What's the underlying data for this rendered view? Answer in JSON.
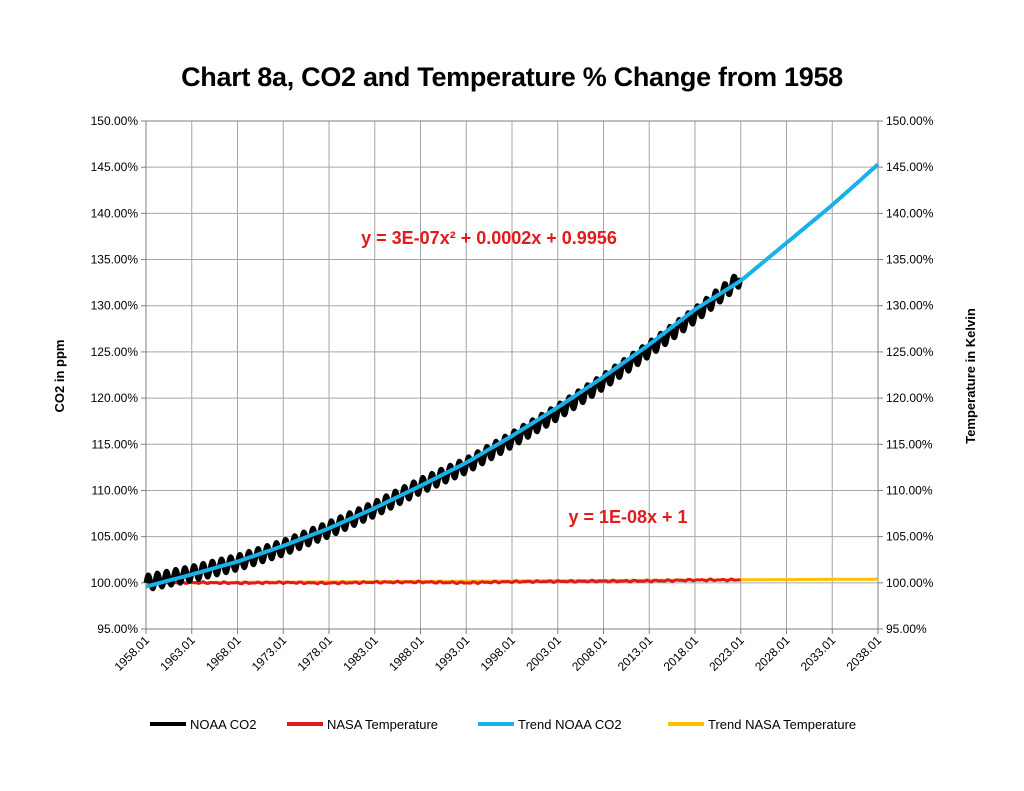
{
  "chart_data": {
    "type": "line",
    "title": "Chart 8a, CO2 and Temperature % Change from 1958",
    "ylabel": "CO2 in ppm",
    "y2label": "Temperature in Kelvin",
    "x_ticks": [
      "1958.01",
      "1963.01",
      "1968.01",
      "1973.01",
      "1978.01",
      "1983.01",
      "1988.01",
      "1993.01",
      "1998.01",
      "2003.01",
      "2008.01",
      "2013.01",
      "2018.01",
      "2023.01",
      "2028.01",
      "2033.01",
      "2038.01"
    ],
    "xlim": [
      1958.01,
      2038.01
    ],
    "y_ticks": [
      "95.00%",
      "100.00%",
      "105.00%",
      "110.00%",
      "115.00%",
      "120.00%",
      "125.00%",
      "130.00%",
      "135.00%",
      "140.00%",
      "145.00%",
      "150.00%"
    ],
    "ylim": [
      0.95,
      1.5
    ],
    "y2_ticks": [
      "95.00%",
      "100.00%",
      "105.00%",
      "110.00%",
      "115.00%",
      "120.00%",
      "125.00%",
      "130.00%",
      "135.00%",
      "140.00%",
      "145.00%",
      "150.00%"
    ],
    "grid": true,
    "legend_position": "bottom",
    "series": [
      {
        "name": "NOAA CO2",
        "color": "#000000",
        "x": [
          1958.01,
          1963.01,
          1968.01,
          1973.01,
          1978.01,
          1983.01,
          1988.01,
          1993.01,
          1998.01,
          2003.01,
          2008.01,
          2013.01,
          2018.01,
          2023.01
        ],
        "y": [
          1.0,
          1.01,
          1.022,
          1.038,
          1.058,
          1.08,
          1.105,
          1.127,
          1.155,
          1.185,
          1.218,
          1.253,
          1.29,
          1.33
        ],
        "seasonal_amplitude": 0.008
      },
      {
        "name": "NASA Temperature",
        "color": "#e31a1c",
        "x": [
          1958.01,
          1963.01,
          1968.01,
          1973.01,
          1978.01,
          1983.01,
          1988.01,
          1993.01,
          1998.01,
          2003.01,
          2008.01,
          2013.01,
          2018.01,
          2023.01
        ],
        "y": [
          1.0005,
          1.0002,
          0.9998,
          1.0003,
          0.9997,
          1.0006,
          1.0008,
          1.0,
          1.0012,
          1.0015,
          1.0018,
          1.002,
          1.003,
          1.0032
        ]
      },
      {
        "name": "Trend NOAA CO2",
        "color": "#1ab0e8",
        "x": [
          1958.01,
          1963.01,
          1968.01,
          1973.01,
          1978.01,
          1983.01,
          1988.01,
          1993.01,
          1998.01,
          2003.01,
          2008.01,
          2013.01,
          2018.01,
          2023.01,
          2028.01,
          2033.01,
          2038.01
        ],
        "y": [
          0.996,
          1.009,
          1.023,
          1.04,
          1.059,
          1.081,
          1.105,
          1.13,
          1.159,
          1.19,
          1.223,
          1.258,
          1.296,
          1.327,
          1.368,
          1.409,
          1.453
        ]
      },
      {
        "name": "Trend NASA Temperature",
        "color": "#ffc000",
        "x": [
          1958.01,
          2038.01
        ],
        "y": [
          1.0,
          1.004
        ]
      }
    ],
    "annotations": [
      {
        "text": "y = 3E-07x² + 0.0002x + 0.9956",
        "color": "#e31a1c"
      },
      {
        "text": "y = 1E-08x + 1",
        "color": "#e31a1c"
      }
    ]
  }
}
